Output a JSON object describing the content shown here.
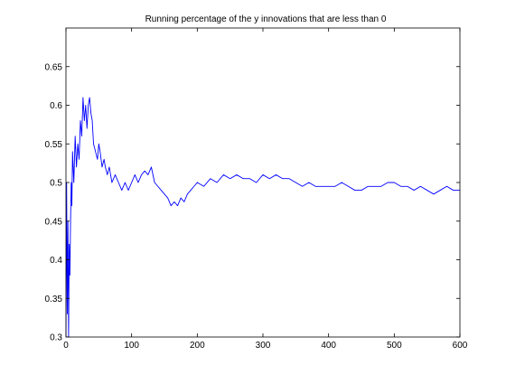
{
  "chart_data": {
    "type": "line",
    "title": "Running percentage of the y innovations that are less than 0",
    "xlabel": "",
    "ylabel": "",
    "xlim": [
      0,
      600
    ],
    "ylim": [
      0.3,
      0.7
    ],
    "x_ticks": [
      0,
      100,
      200,
      300,
      400,
      500,
      600
    ],
    "y_ticks": [
      0.3,
      0.35,
      0.4,
      0.45,
      0.5,
      0.55,
      0.6,
      0.65
    ],
    "x_tick_labels": [
      "0",
      "100",
      "200",
      "300",
      "400",
      "500",
      "600"
    ],
    "y_tick_labels": [
      "0.3",
      "0.35",
      "0.4",
      "0.45",
      "0.5",
      "0.55",
      "0.6",
      "0.65"
    ],
    "grid": false,
    "legend": "none",
    "line_color": "#0000ff",
    "series": [
      {
        "x": [
          0,
          1,
          2,
          3,
          4,
          5,
          6,
          7,
          8,
          9,
          10,
          12,
          14,
          16,
          18,
          20,
          22,
          24,
          26,
          28,
          30,
          32,
          34,
          36,
          38,
          40,
          42,
          45,
          48,
          50,
          52,
          55,
          58,
          60,
          63,
          66,
          70,
          75,
          80,
          85,
          90,
          95,
          100,
          105,
          110,
          115,
          120,
          125,
          130,
          135,
          140,
          145,
          150,
          155,
          160,
          165,
          170,
          175,
          180,
          185,
          190,
          195,
          200,
          210,
          220,
          230,
          240,
          250,
          260,
          270,
          280,
          290,
          300,
          310,
          320,
          330,
          340,
          350,
          360,
          370,
          380,
          390,
          400,
          410,
          420,
          430,
          440,
          450,
          460,
          470,
          480,
          490,
          500,
          510,
          520,
          530,
          540,
          550,
          560,
          570,
          580,
          590,
          600
        ],
        "y": [
          0.3,
          0.5,
          0.33,
          0.45,
          0.3,
          0.42,
          0.38,
          0.45,
          0.5,
          0.47,
          0.54,
          0.5,
          0.56,
          0.52,
          0.55,
          0.53,
          0.58,
          0.56,
          0.61,
          0.58,
          0.6,
          0.57,
          0.6,
          0.61,
          0.59,
          0.58,
          0.55,
          0.54,
          0.53,
          0.55,
          0.54,
          0.52,
          0.53,
          0.52,
          0.51,
          0.52,
          0.5,
          0.51,
          0.5,
          0.49,
          0.5,
          0.49,
          0.5,
          0.51,
          0.5,
          0.51,
          0.515,
          0.51,
          0.52,
          0.5,
          0.495,
          0.49,
          0.485,
          0.48,
          0.47,
          0.475,
          0.47,
          0.48,
          0.475,
          0.485,
          0.49,
          0.495,
          0.5,
          0.495,
          0.505,
          0.5,
          0.51,
          0.505,
          0.51,
          0.505,
          0.505,
          0.5,
          0.51,
          0.505,
          0.51,
          0.505,
          0.505,
          0.5,
          0.495,
          0.5,
          0.495,
          0.495,
          0.495,
          0.495,
          0.5,
          0.495,
          0.49,
          0.49,
          0.495,
          0.495,
          0.495,
          0.5,
          0.5,
          0.495,
          0.495,
          0.49,
          0.495,
          0.49,
          0.485,
          0.49,
          0.495,
          0.49,
          0.49
        ]
      }
    ]
  }
}
